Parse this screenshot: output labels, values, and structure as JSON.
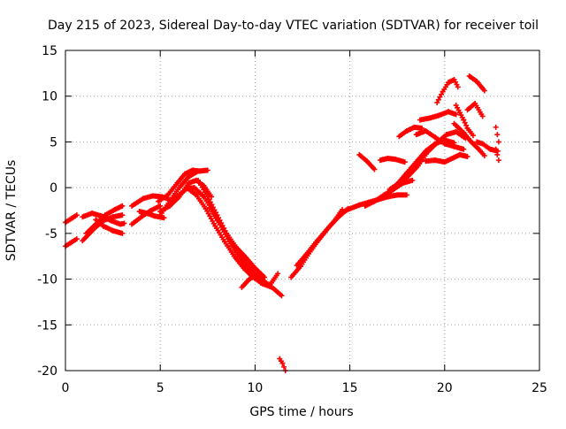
{
  "chart_data": {
    "type": "scatter",
    "title": "Day 215 of 2023, Sidereal Day-to-day VTEC variation (SDTVAR) for receiver toil",
    "xlabel": "GPS time / hours",
    "ylabel": "SDTVAR / TECUs",
    "xlim": [
      0,
      25
    ],
    "ylim": [
      -20,
      15
    ],
    "grid": true,
    "marker": "+",
    "series_color": "#ff0000",
    "x_ticks": [
      "0",
      "5",
      "10",
      "15",
      "20",
      "25"
    ],
    "y_ticks": [
      "-20",
      "-15",
      "-10",
      "-5",
      "0",
      "5",
      "10",
      "15"
    ],
    "tracks": [
      {
        "x": [
          0.0,
          0.3,
          0.6
        ],
        "y": [
          -3.8,
          -3.4,
          -3.0
        ]
      },
      {
        "x": [
          0.0,
          0.3,
          0.6
        ],
        "y": [
          -6.4,
          -6.0,
          -5.6
        ]
      },
      {
        "x": [
          0.9,
          1.4,
          1.9,
          2.4,
          2.9,
          3.1
        ],
        "y": [
          -3.2,
          -2.8,
          -3.1,
          -3.6,
          -4.0,
          -3.9
        ]
      },
      {
        "x": [
          0.9,
          1.5,
          2.0,
          2.5,
          3.0
        ],
        "y": [
          -5.8,
          -4.5,
          -3.6,
          -3.2,
          -3.0
        ]
      },
      {
        "x": [
          1.1,
          1.6,
          2.1,
          2.6,
          3.0
        ],
        "y": [
          -5.0,
          -4.0,
          -3.0,
          -2.4,
          -2.0
        ]
      },
      {
        "x": [
          1.6,
          2.0,
          2.5,
          3.0
        ],
        "y": [
          -3.5,
          -4.2,
          -4.7,
          -5.0
        ]
      },
      {
        "x": [
          3.5,
          4.0,
          4.5,
          5.0
        ],
        "y": [
          -4.0,
          -3.2,
          -2.5,
          -2.0
        ]
      },
      {
        "x": [
          3.5,
          4.1,
          4.6,
          5.1,
          5.6
        ],
        "y": [
          -2.0,
          -1.2,
          -0.9,
          -1.0,
          -1.4
        ]
      },
      {
        "x": [
          3.9,
          4.3,
          4.7,
          5.2
        ],
        "y": [
          -2.6,
          -2.8,
          -3.1,
          -3.3
        ]
      },
      {
        "x": [
          5.0,
          5.5,
          6.0,
          6.5,
          7.0,
          7.5
        ],
        "y": [
          -3.0,
          -1.5,
          0.0,
          1.2,
          1.8,
          1.9
        ]
      },
      {
        "x": [
          5.0,
          5.5,
          6.0,
          6.5,
          6.9,
          7.3,
          7.7
        ],
        "y": [
          -2.6,
          -2.0,
          -1.0,
          0.5,
          0.8,
          0.2,
          -1.0
        ]
      },
      {
        "x": [
          4.9,
          5.4,
          5.9,
          6.3,
          6.7,
          7.1
        ],
        "y": [
          -1.5,
          -0.8,
          0.5,
          1.5,
          1.9,
          1.8
        ]
      },
      {
        "x": [
          5.6,
          6.0,
          6.4,
          6.8,
          7.3,
          7.8,
          8.3,
          8.8,
          9.3,
          9.8,
          10.3,
          10.8,
          11.2
        ],
        "y": [
          -1.5,
          -0.8,
          -0.1,
          0.0,
          -1.0,
          -2.6,
          -4.6,
          -6.4,
          -8.0,
          -9.3,
          -10.4,
          -10.6,
          -9.4
        ]
      },
      {
        "x": [
          6.4,
          6.9,
          7.4,
          7.9,
          8.4,
          8.9,
          9.4,
          9.9,
          10.4,
          10.9,
          11.4
        ],
        "y": [
          0.0,
          -0.8,
          -2.3,
          -4.2,
          -5.9,
          -7.5,
          -8.8,
          -9.8,
          -10.5,
          -10.9,
          -11.8
        ]
      },
      {
        "x": [
          7.0,
          7.5,
          8.0,
          8.5,
          9.0,
          9.5,
          10.0,
          10.5
        ],
        "y": [
          0.8,
          -1.0,
          -3.0,
          -5.0,
          -6.5,
          -7.6,
          -8.8,
          -9.8
        ]
      },
      {
        "x": [
          7.6,
          8.1,
          8.6,
          9.1,
          9.6,
          10.1,
          10.6
        ],
        "y": [
          -2.2,
          -3.8,
          -5.6,
          -7.0,
          -8.4,
          -9.7,
          -10.6
        ]
      },
      {
        "x": [
          9.3,
          9.7,
          10.1,
          10.5
        ],
        "y": [
          -10.9,
          -10.0,
          -9.5,
          -10.2
        ]
      },
      {
        "x": [
          11.3,
          11.45,
          11.6
        ],
        "y": [
          -18.7,
          -19.2,
          -20.0
        ]
      },
      {
        "x": [
          11.9,
          12.4,
          12.9,
          13.4,
          13.9,
          14.4,
          14.9
        ],
        "y": [
          -9.8,
          -8.6,
          -7.0,
          -5.6,
          -4.3,
          -3.2,
          -2.3
        ]
      },
      {
        "x": [
          12.2,
          12.7,
          13.2,
          13.7,
          14.2,
          14.6
        ],
        "y": [
          -8.5,
          -7.3,
          -6.0,
          -4.8,
          -3.6,
          -2.4
        ]
      },
      {
        "x": [
          14.5,
          15.0,
          15.5,
          16.0,
          16.5,
          17.0,
          17.5,
          18.0
        ],
        "y": [
          -2.8,
          -2.3,
          -1.9,
          -1.6,
          -1.3,
          -1.0,
          -0.8,
          -0.8
        ]
      },
      {
        "x": [
          15.8,
          16.3,
          16.8,
          17.3,
          17.8,
          18.3
        ],
        "y": [
          -2.0,
          -1.5,
          -0.8,
          -0.2,
          0.5,
          0.8
        ]
      },
      {
        "x": [
          15.5,
          15.9,
          16.3
        ],
        "y": [
          3.6,
          2.9,
          2.0
        ]
      },
      {
        "x": [
          16.6,
          17.0,
          17.4,
          17.9
        ],
        "y": [
          3.0,
          3.2,
          3.1,
          2.8
        ]
      },
      {
        "x": [
          17.0,
          17.5,
          18.0,
          18.5,
          19.0,
          19.5,
          20.0,
          20.5
        ],
        "y": [
          -0.8,
          0.4,
          1.6,
          2.8,
          4.0,
          4.8,
          5.2,
          4.9
        ]
      },
      {
        "x": [
          17.1,
          17.6,
          18.1,
          18.6,
          19.1,
          19.6,
          20.1,
          20.6,
          21.1
        ],
        "y": [
          -0.2,
          0.5,
          1.3,
          2.4,
          3.9,
          4.9,
          5.8,
          6.1,
          5.4
        ]
      },
      {
        "x": [
          17.6,
          18.0,
          18.4,
          18.8
        ],
        "y": [
          5.6,
          6.2,
          6.6,
          6.5
        ]
      },
      {
        "x": [
          18.5,
          19.0,
          19.5,
          20.0,
          20.5,
          21.0
        ],
        "y": [
          5.8,
          6.2,
          5.5,
          4.8,
          4.5,
          4.2
        ]
      },
      {
        "x": [
          18.7,
          19.2,
          19.7,
          20.2,
          20.6
        ],
        "y": [
          7.4,
          7.6,
          7.9,
          8.3,
          8.0
        ]
      },
      {
        "x": [
          19.0,
          19.5,
          20.0,
          20.4,
          20.8,
          21.2
        ],
        "y": [
          2.9,
          3.0,
          2.8,
          3.2,
          3.6,
          3.4
        ]
      },
      {
        "x": [
          19.6,
          19.9,
          20.2,
          20.5,
          20.7
        ],
        "y": [
          9.3,
          10.5,
          11.5,
          11.8,
          11.0
        ]
      },
      {
        "x": [
          20.5,
          21.0,
          21.4,
          21.8,
          22.1
        ],
        "y": [
          7.0,
          6.0,
          5.0,
          4.2,
          3.5
        ]
      },
      {
        "x": [
          20.6,
          20.8,
          21.0,
          21.2,
          21.5
        ],
        "y": [
          9.0,
          8.2,
          7.4,
          6.5,
          5.7
        ]
      },
      {
        "x": [
          21.2,
          21.6,
          22.0
        ],
        "y": [
          8.5,
          9.2,
          7.8
        ]
      },
      {
        "x": [
          21.7,
          22.0,
          22.4,
          22.8
        ],
        "y": [
          5.0,
          4.8,
          4.2,
          4.0
        ]
      },
      {
        "x": [
          21.3,
          21.7,
          22.1
        ],
        "y": [
          12.2,
          11.6,
          10.6
        ]
      },
      {
        "x": [
          22.7,
          22.85
        ],
        "y": [
          6.6,
          5.0
        ]
      },
      {
        "x": [
          22.7,
          22.85
        ],
        "y": [
          4.2,
          3.0
        ]
      }
    ]
  }
}
